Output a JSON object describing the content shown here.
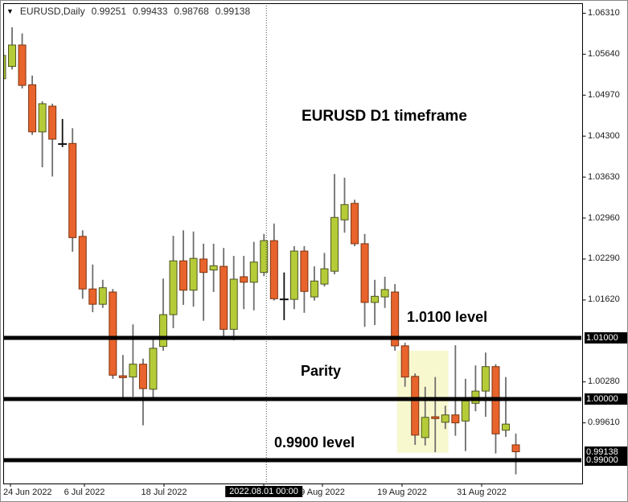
{
  "header": {
    "symbol_label": "EURUSD,Daily",
    "ohlc_open": "0.99251",
    "ohlc_high": "0.99433",
    "ohlc_low": "0.98768",
    "ohlc_close": "0.99138",
    "dropdown_glyph": "▼"
  },
  "annotations": {
    "timeframe_note": "EURUSD D1 timeframe",
    "high_level_note": "1.0100 level",
    "parity_note": "Parity",
    "low_level_note": "0.9900 level"
  },
  "y_axis": {
    "plain_labels": [
      "1.06310",
      "1.05640",
      "1.04970",
      "1.04300",
      "1.03630",
      "1.02960",
      "1.02290",
      "1.01620",
      "1.00280",
      "0.99610"
    ],
    "boxed_labels": [
      {
        "text": "1.01000",
        "price": 1.01
      },
      {
        "text": "1.00000",
        "price": 1.0
      },
      {
        "text": "0.99138",
        "price": 0.99138
      },
      {
        "text": "0.99000",
        "price": 0.99
      }
    ]
  },
  "x_axis": {
    "labels": [
      {
        "text": "24 Jun 2022",
        "x": 12,
        "align": "left"
      },
      {
        "text": "6 Jul 2022",
        "x": 104,
        "align": "center"
      },
      {
        "text": "18 Jul 2022",
        "x": 203,
        "align": "center"
      },
      {
        "text": "2022.08.01 00:00",
        "x": 327,
        "align": "center",
        "boxed": true
      },
      {
        "text": "9 Aug 2022",
        "x": 400,
        "align": "center"
      },
      {
        "text": "19 Aug 2022",
        "x": 499,
        "align": "center"
      },
      {
        "text": "31 Aug 2022",
        "x": 598,
        "align": "center"
      }
    ]
  },
  "colors": {
    "bull_fill": "#b5cc38",
    "bull_border": "#4e551f",
    "bear_fill": "#e8642c",
    "bear_border": "#7d330f",
    "wick": "#6e6e6e",
    "doji": "#111111",
    "level_line": "#000000",
    "separator_line": "#4a4a4a",
    "highlight_fill": "#f8f8cf",
    "frame": "#000000"
  },
  "chart_data": {
    "type": "candlestick",
    "title": "EURUSD Daily",
    "symbol": "EURUSD",
    "timeframe": "D1",
    "ohlc_format": [
      "open",
      "high",
      "low",
      "close"
    ],
    "x_range": [
      "24 Jun 2022",
      "2 Sep 2022"
    ],
    "y_range": [
      0.985,
      1.064
    ],
    "grid": false,
    "horizontal_levels": [
      1.01,
      1.0,
      0.99
    ],
    "current_price": 0.99138,
    "period_separator": {
      "label": "2022.08.01 00:00",
      "candle_index": 26
    },
    "highlight_region": {
      "candle_start": 39.2,
      "candle_end": 44.3,
      "price_top": 1.0079,
      "price_bottom": 0.9912
    },
    "doji_black_indices": [
      6,
      28
    ],
    "candles": [
      [
        1.0524,
        1.0565,
        1.0513,
        1.0562
      ],
      [
        1.0544,
        1.0608,
        1.0539,
        1.0579
      ],
      [
        1.0579,
        1.0598,
        1.0508,
        1.0513
      ],
      [
        1.0514,
        1.0529,
        1.0432,
        1.0437
      ],
      [
        1.0437,
        1.0487,
        1.0379,
        1.0483
      ],
      [
        1.0479,
        1.0483,
        1.0364,
        1.0425
      ],
      [
        1.0419,
        1.0458,
        1.0412,
        1.0417
      ],
      [
        1.0418,
        1.0443,
        1.0241,
        1.0264
      ],
      [
        1.0266,
        1.0276,
        1.0164,
        1.018
      ],
      [
        1.018,
        1.022,
        1.0142,
        1.0155
      ],
      [
        1.0155,
        1.0195,
        1.0149,
        1.0182
      ],
      [
        1.0175,
        1.018,
        1.0033,
        1.0039
      ],
      [
        1.0038,
        1.0072,
        1.0003,
        1.0035
      ],
      [
        1.0036,
        1.0122,
        1.0004,
        1.0057
      ],
      [
        1.0057,
        1.0066,
        0.9957,
        1.0017
      ],
      [
        1.0016,
        1.0099,
        1.0003,
        1.0083
      ],
      [
        1.0086,
        1.0197,
        1.0079,
        1.0138
      ],
      [
        1.0138,
        1.0267,
        1.0116,
        1.0226
      ],
      [
        1.0226,
        1.0276,
        1.0154,
        1.0178
      ],
      [
        1.0178,
        1.0274,
        1.0151,
        1.023
      ],
      [
        1.0229,
        1.0254,
        1.0128,
        1.0207
      ],
      [
        1.0211,
        1.0254,
        1.0175,
        1.0218
      ],
      [
        1.0217,
        1.0247,
        1.0103,
        1.0114
      ],
      [
        1.0114,
        1.0234,
        1.0096,
        1.0196
      ],
      [
        1.02,
        1.0234,
        1.0147,
        1.0191
      ],
      [
        1.0191,
        1.0257,
        1.0145,
        1.0224
      ],
      [
        1.0207,
        1.027,
        1.0201,
        1.0259
      ],
      [
        1.0259,
        1.0287,
        1.0161,
        1.0164
      ],
      [
        1.0164,
        1.0207,
        1.0129,
        1.0163
      ],
      [
        1.0163,
        1.025,
        1.0147,
        1.0242
      ],
      [
        1.0242,
        1.025,
        1.0141,
        1.0176
      ],
      [
        1.0167,
        1.0217,
        1.0161,
        1.0193
      ],
      [
        1.0188,
        1.0239,
        1.0184,
        1.0213
      ],
      [
        1.0209,
        1.0368,
        1.0204,
        1.0297
      ],
      [
        1.0293,
        1.0362,
        1.0272,
        1.0318
      ],
      [
        1.032,
        1.0326,
        1.025,
        1.0254
      ],
      [
        1.0254,
        1.027,
        1.0118,
        1.0158
      ],
      [
        1.0158,
        1.0195,
        1.0121,
        1.0168
      ],
      [
        1.0167,
        1.02,
        1.0149,
        1.0179
      ],
      [
        1.0175,
        1.0188,
        1.0079,
        1.0087
      ],
      [
        1.0087,
        1.0092,
        1.002,
        1.0036
      ],
      [
        1.0037,
        1.0042,
        0.9925,
        0.9941
      ],
      [
        0.9937,
        1.002,
        0.9924,
        0.997
      ],
      [
        0.9971,
        1.0036,
        0.9913,
        0.9968
      ],
      [
        0.9962,
        0.9989,
        0.9951,
        0.9974
      ],
      [
        0.9974,
        1.0088,
        0.994,
        0.9961
      ],
      [
        0.9964,
        1.0033,
        0.9915,
        0.9997
      ],
      [
        0.9993,
        1.0055,
        0.998,
        1.0013
      ],
      [
        1.0013,
        1.0076,
        0.9971,
        1.0053
      ],
      [
        1.0053,
        1.0057,
        0.9911,
        0.9943
      ],
      [
        0.9949,
        1.0036,
        0.9938,
        0.9959
      ],
      [
        0.99251,
        0.99433,
        0.98768,
        0.99138
      ]
    ]
  }
}
